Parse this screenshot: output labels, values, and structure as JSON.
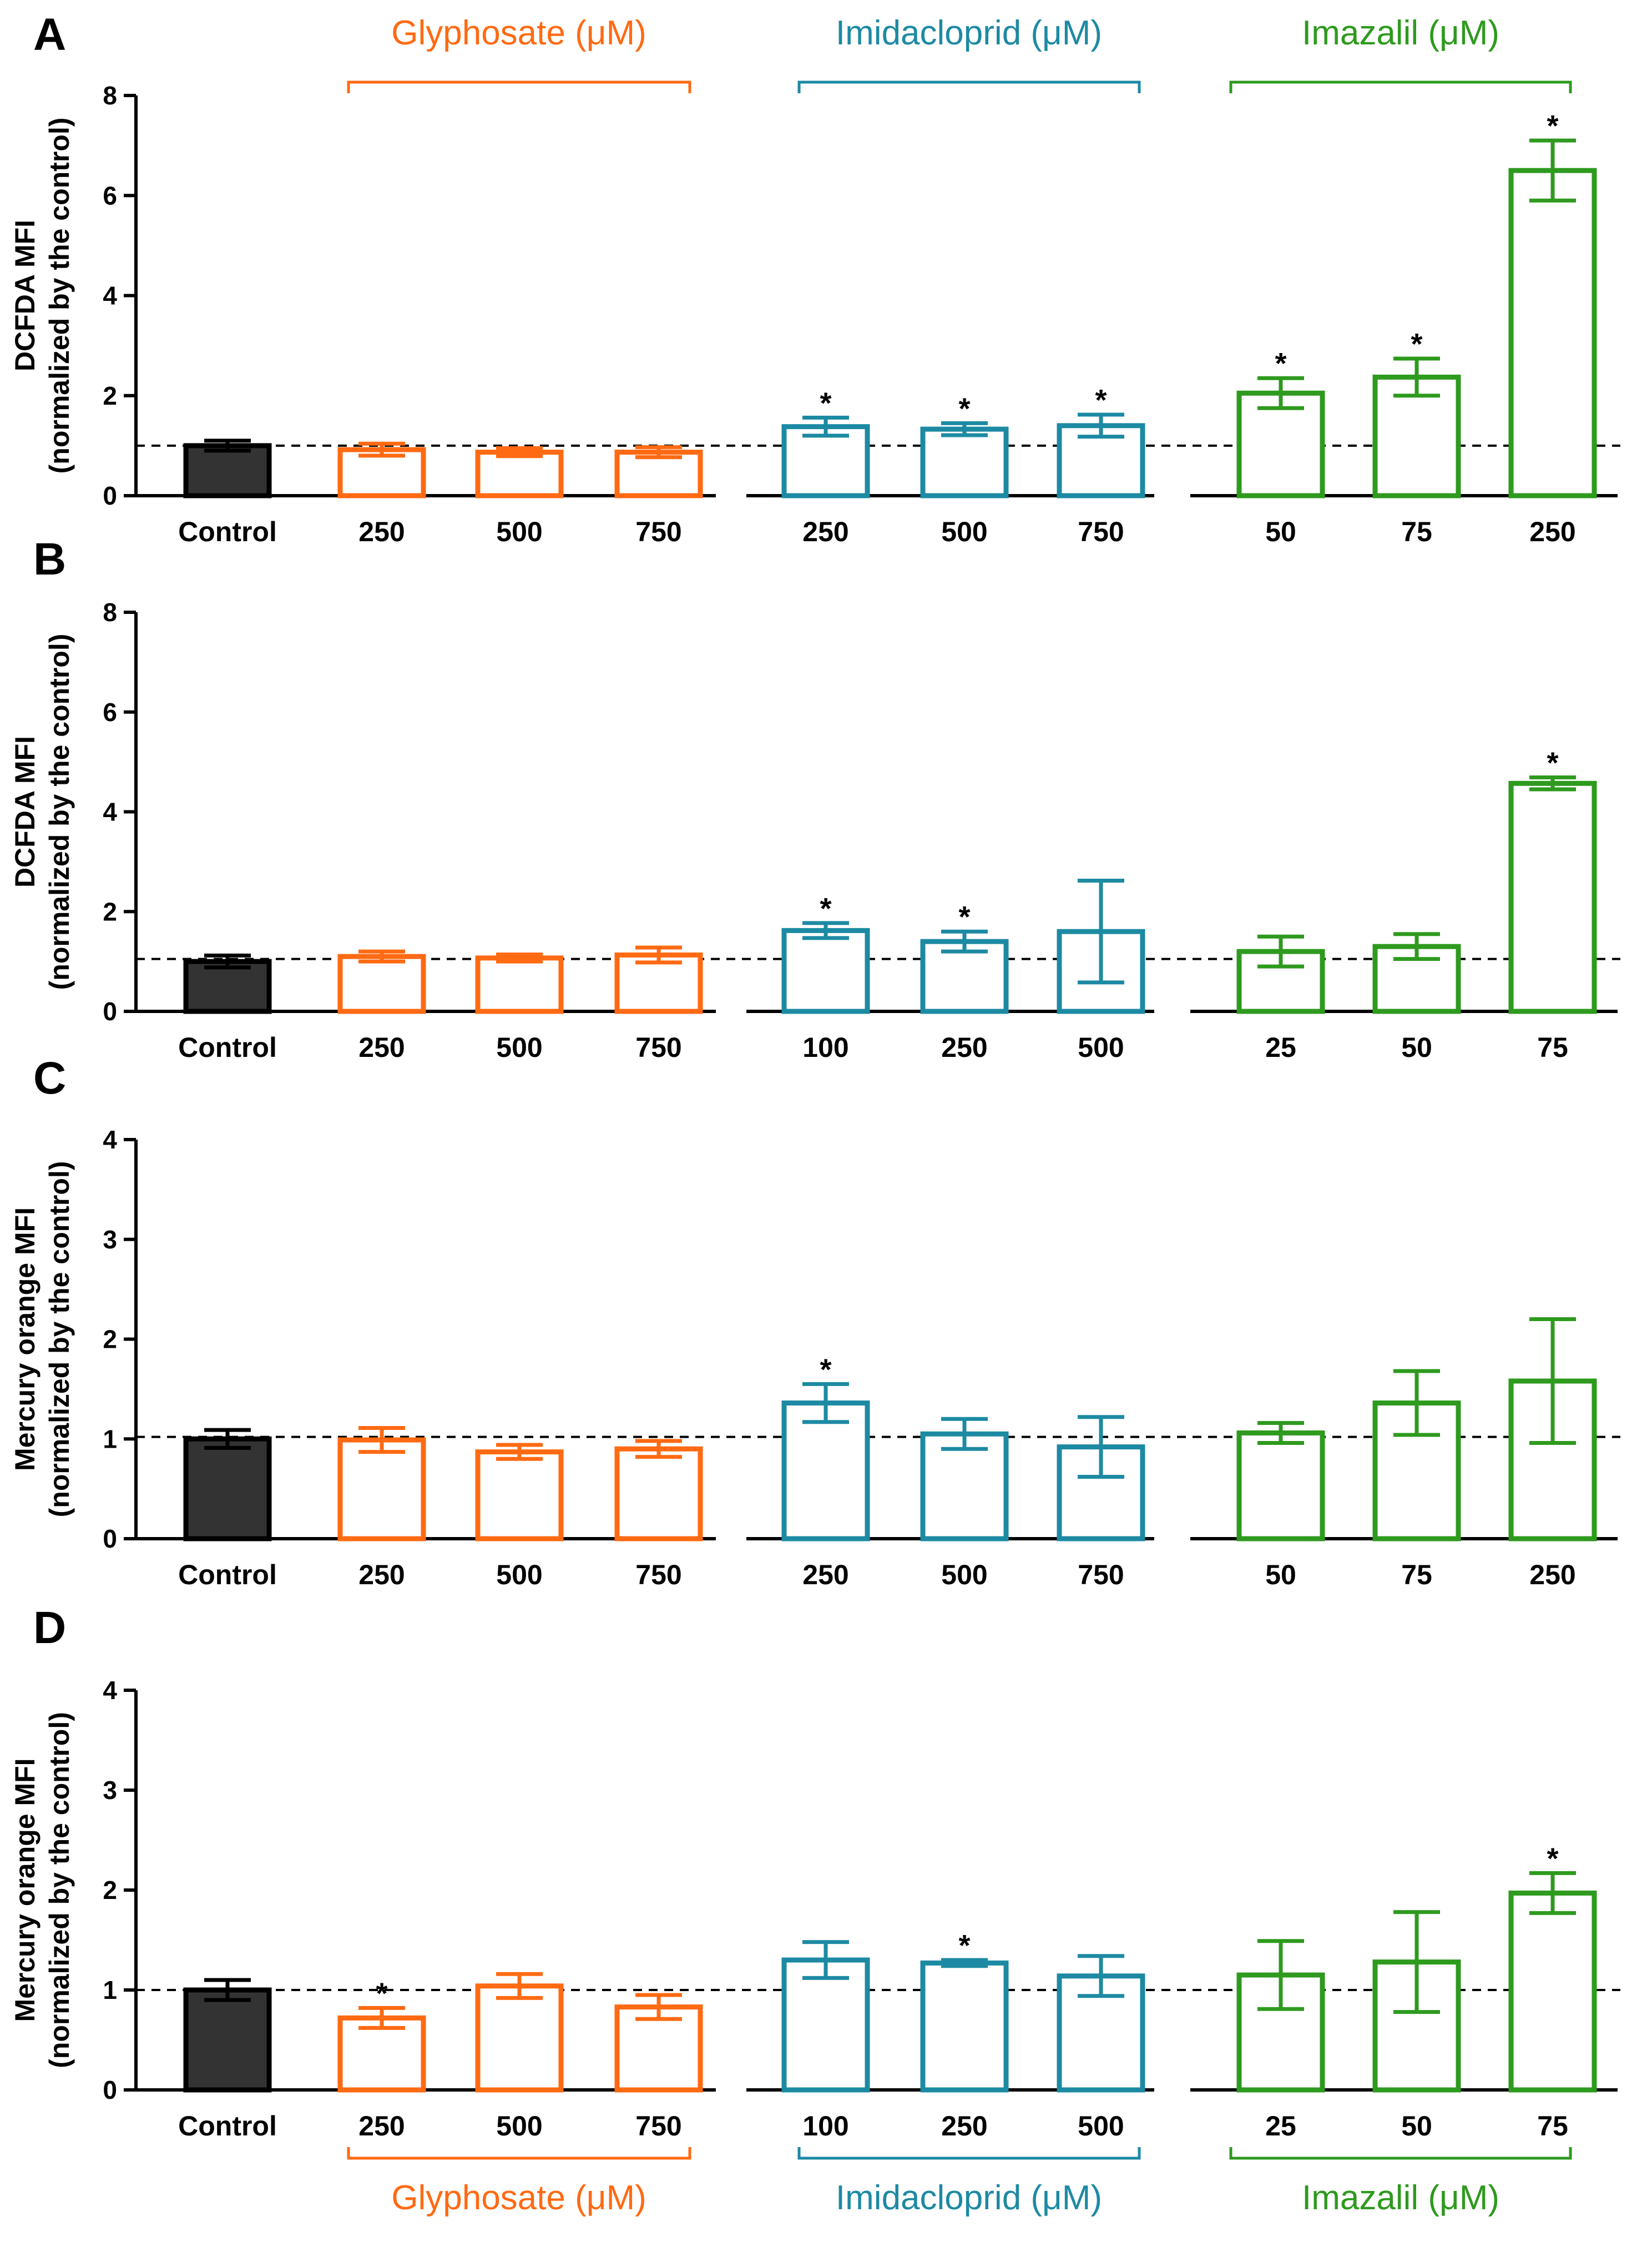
{
  "colors": {
    "control": "#333333",
    "glyphosate": "#FF6A13",
    "imidacloprid": "#1D8AA3",
    "imazalil": "#2E9A1E"
  },
  "groups": [
    {
      "key": "control",
      "title": ""
    },
    {
      "key": "glyphosate",
      "title": "Glyphosate (μM)"
    },
    {
      "key": "imidacloprid",
      "title": "Imidacloprid (μM)"
    },
    {
      "key": "imazalil",
      "title": "Imazalil (μM)"
    }
  ],
  "chart_data": [
    {
      "type": "bar",
      "panel": "A",
      "ylabel": [
        "DCFDA MFI",
        "(normalized by the control)"
      ],
      "ylim": [
        0,
        8
      ],
      "yticks": [
        0,
        2,
        4,
        6,
        8
      ],
      "reference_line": 1,
      "categories": [
        "Control",
        "250",
        "500",
        "750",
        "250",
        "500",
        "750",
        "50",
        "75",
        "250"
      ],
      "values": [
        1.0,
        0.92,
        0.87,
        0.87,
        1.38,
        1.33,
        1.4,
        2.05,
        2.37,
        6.5
      ],
      "errors": [
        0.1,
        0.12,
        0.08,
        0.1,
        0.18,
        0.12,
        0.22,
        0.3,
        0.37,
        0.6
      ],
      "significant": [
        false,
        false,
        false,
        false,
        true,
        true,
        true,
        true,
        true,
        true
      ]
    },
    {
      "type": "bar",
      "panel": "B",
      "ylabel": [
        "DCFDA MFI",
        "(normalized by the control)"
      ],
      "ylim": [
        0,
        8
      ],
      "yticks": [
        0,
        2,
        4,
        6,
        8
      ],
      "reference_line": 1.05,
      "categories": [
        "Control",
        "250",
        "500",
        "750",
        "100",
        "250",
        "500",
        "25",
        "50",
        "75"
      ],
      "values": [
        1.0,
        1.1,
        1.07,
        1.13,
        1.62,
        1.4,
        1.6,
        1.2,
        1.3,
        4.57
      ],
      "errors": [
        0.12,
        0.1,
        0.07,
        0.15,
        0.15,
        0.2,
        1.02,
        0.3,
        0.25,
        0.12
      ],
      "significant": [
        false,
        false,
        false,
        false,
        true,
        true,
        false,
        false,
        false,
        true
      ]
    },
    {
      "type": "bar",
      "panel": "C",
      "ylabel": [
        "Mercury orange MFI",
        "(normalized by the control)"
      ],
      "ylim": [
        0,
        4
      ],
      "yticks": [
        0,
        1,
        2,
        3,
        4
      ],
      "reference_line": 1.02,
      "categories": [
        "Control",
        "250",
        "500",
        "750",
        "250",
        "500",
        "750",
        "50",
        "75",
        "250"
      ],
      "values": [
        1.0,
        0.99,
        0.87,
        0.9,
        1.36,
        1.05,
        0.92,
        1.06,
        1.36,
        1.58
      ],
      "errors": [
        0.09,
        0.12,
        0.07,
        0.08,
        0.19,
        0.15,
        0.3,
        0.1,
        0.32,
        0.62
      ],
      "significant": [
        false,
        false,
        false,
        false,
        true,
        false,
        false,
        false,
        false,
        false
      ]
    },
    {
      "type": "bar",
      "panel": "D",
      "ylabel": [
        "Mercury orange MFI",
        "(normalized by the control)"
      ],
      "ylim": [
        0,
        4
      ],
      "yticks": [
        0,
        1,
        2,
        3,
        4
      ],
      "reference_line": 1.0,
      "categories": [
        "Control",
        "250",
        "500",
        "750",
        "100",
        "250",
        "500",
        "25",
        "50",
        "75"
      ],
      "values": [
        1.0,
        0.72,
        1.04,
        0.83,
        1.3,
        1.27,
        1.14,
        1.15,
        1.28,
        1.97
      ],
      "errors": [
        0.1,
        0.1,
        0.12,
        0.12,
        0.18,
        0.03,
        0.2,
        0.34,
        0.5,
        0.2
      ],
      "significant": [
        false,
        true,
        false,
        false,
        false,
        true,
        false,
        false,
        false,
        true
      ]
    }
  ]
}
